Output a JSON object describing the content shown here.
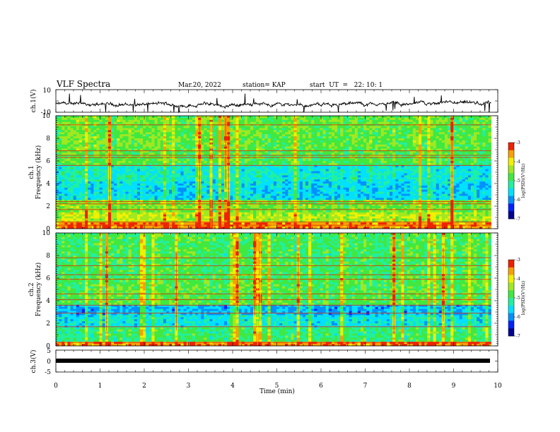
{
  "header": {
    "title": "VLF Spectra",
    "date": "Mar.20, 2022",
    "station": "station= KAP",
    "start_ut": "start  UT  =   22: 10: 1"
  },
  "colors": {
    "colormap": [
      "#000090",
      "#0020ff",
      "#0090ff",
      "#00e0ff",
      "#20f0a0",
      "#40e840",
      "#a0e820",
      "#f0f000",
      "#f8a000",
      "#f02000",
      "#ffffff"
    ],
    "waveform": "#000000",
    "ch3_band": "#000000"
  },
  "chart_data": [
    {
      "type": "line",
      "name": "ch1-waveform",
      "ylabel": "ch.1(V)",
      "ylim": [
        -10,
        10
      ],
      "yticks": [
        "10",
        "-10"
      ],
      "xlim": [
        0,
        10
      ],
      "description_values": "noisy waveform around -3 V with excursions between about -10 and +5 V"
    },
    {
      "type": "heatmap",
      "name": "ch1-spectrogram",
      "ylabel": "ch.1\nFrequency (kHz)",
      "ylabel_lines": [
        "ch.1",
        "Frequency (kHz)"
      ],
      "ylim": [
        0,
        10
      ],
      "yticks": [
        "0",
        "2",
        "4",
        "6",
        "8",
        "10"
      ],
      "xlim": [
        0,
        9.85
      ],
      "colorbar": {
        "label": "log(PSD)(V²/Hz)",
        "range": [
          -7,
          -3
        ],
        "ticks": [
          "-3",
          "-4",
          "-5",
          "-6",
          "-7"
        ]
      },
      "horizontal_lines_khz": [
        0.3,
        0.6,
        1.7,
        2.2,
        2.4,
        5.6,
        6.3,
        6.5,
        6.9,
        9.2
      ],
      "bands": [
        {
          "from": 0,
          "to": 0.5,
          "level": -3.5
        },
        {
          "from": 0.5,
          "to": 1.5,
          "level": -4.3
        },
        {
          "from": 1.5,
          "to": 2.6,
          "level": -4.6
        },
        {
          "from": 2.6,
          "to": 4.2,
          "level": -5.6
        },
        {
          "from": 4.2,
          "to": 5.6,
          "level": -5.4
        },
        {
          "from": 5.6,
          "to": 7.0,
          "level": -4.8
        },
        {
          "from": 7.0,
          "to": 10,
          "level": -4.7
        }
      ]
    },
    {
      "type": "heatmap",
      "name": "ch2-spectrogram",
      "ylabel": "ch.2\nFrequency (kHz)",
      "ylabel_lines": [
        "ch.2",
        "Frequency (kHz)"
      ],
      "ylim": [
        0,
        10
      ],
      "yticks": [
        "0",
        "2",
        "4",
        "6",
        "8",
        "10"
      ],
      "xlim": [
        0,
        9.85
      ],
      "colorbar": {
        "label": "log(PSD)(V²/Hz)",
        "range": [
          -7,
          -3
        ],
        "ticks": [
          "-3",
          "-4",
          "-5",
          "-6",
          "-7"
        ]
      },
      "horizontal_lines_khz": [
        0.3,
        1.7,
        2.9,
        3.6,
        4.1,
        4.6,
        5.9,
        6.3,
        7.1,
        7.8
      ],
      "bands": [
        {
          "from": 0,
          "to": 0.4,
          "level": -3.5
        },
        {
          "from": 0.4,
          "to": 1.6,
          "level": -5.0
        },
        {
          "from": 1.6,
          "to": 2.8,
          "level": -5.5
        },
        {
          "from": 2.8,
          "to": 3.6,
          "level": -5.8
        },
        {
          "from": 3.6,
          "to": 6.0,
          "level": -4.8
        },
        {
          "from": 6.0,
          "to": 10,
          "level": -4.9
        }
      ]
    },
    {
      "type": "line",
      "name": "ch3-waveform",
      "ylabel": "ch.3(V)",
      "ylim": [
        -5,
        5
      ],
      "yticks": [
        "5",
        "0",
        "-5"
      ],
      "xlim": [
        0,
        10
      ],
      "xlabel": "Time (min)",
      "xticks": [
        "0",
        "1",
        "2",
        "3",
        "4",
        "5",
        "6",
        "7",
        "8",
        "9",
        "10"
      ],
      "constant_level": 0
    }
  ]
}
